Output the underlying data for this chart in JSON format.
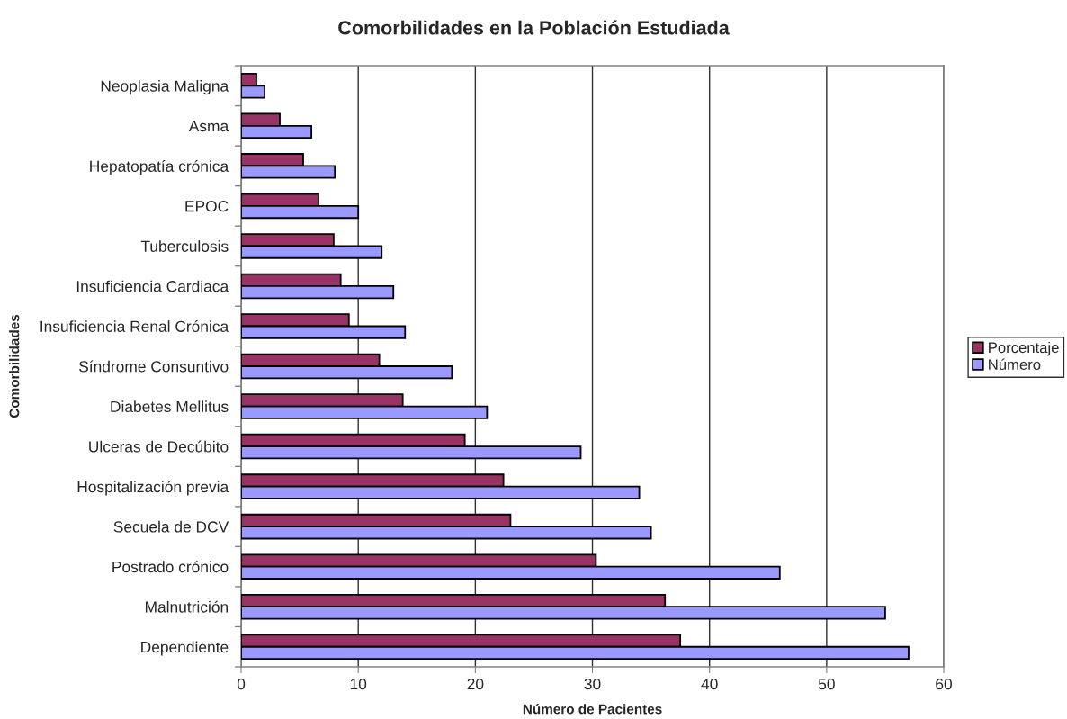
{
  "chart_data": {
    "type": "bar",
    "orientation": "horizontal",
    "title": "Comorbilidades en la Población Estudiada",
    "xlabel": "Número de Pacientes",
    "ylabel": "Comorbilidades",
    "categories": [
      "Neoplasia Maligna",
      "Asma",
      "Hepatopatía crónica",
      "EPOC",
      "Tuberculosis",
      "Insuficiencia Cardiaca",
      "Insuficiencia Renal Crónica",
      "Síndrome Consuntivo",
      "Diabetes Mellitus",
      "Ulceras de Decúbito",
      "Hospitalización previa",
      "Secuela de DCV",
      "Postrado crónico",
      "Malnutrición",
      "Dependiente"
    ],
    "series": [
      {
        "name": "Porcentaje",
        "color": "#993366",
        "values": [
          1.3,
          3.3,
          5.3,
          6.6,
          7.9,
          8.5,
          9.2,
          11.8,
          13.8,
          19.1,
          22.4,
          23.0,
          30.3,
          36.2,
          37.5
        ]
      },
      {
        "name": "Número",
        "color": "#9999ff",
        "values": [
          2,
          6,
          8,
          10,
          12,
          13,
          14,
          18,
          21,
          29,
          34,
          35,
          46,
          55,
          57
        ]
      }
    ],
    "xlim": [
      0,
      60
    ],
    "xticks": [
      0,
      10,
      20,
      30,
      40,
      50,
      60
    ],
    "grid": "x",
    "legend": "right"
  }
}
